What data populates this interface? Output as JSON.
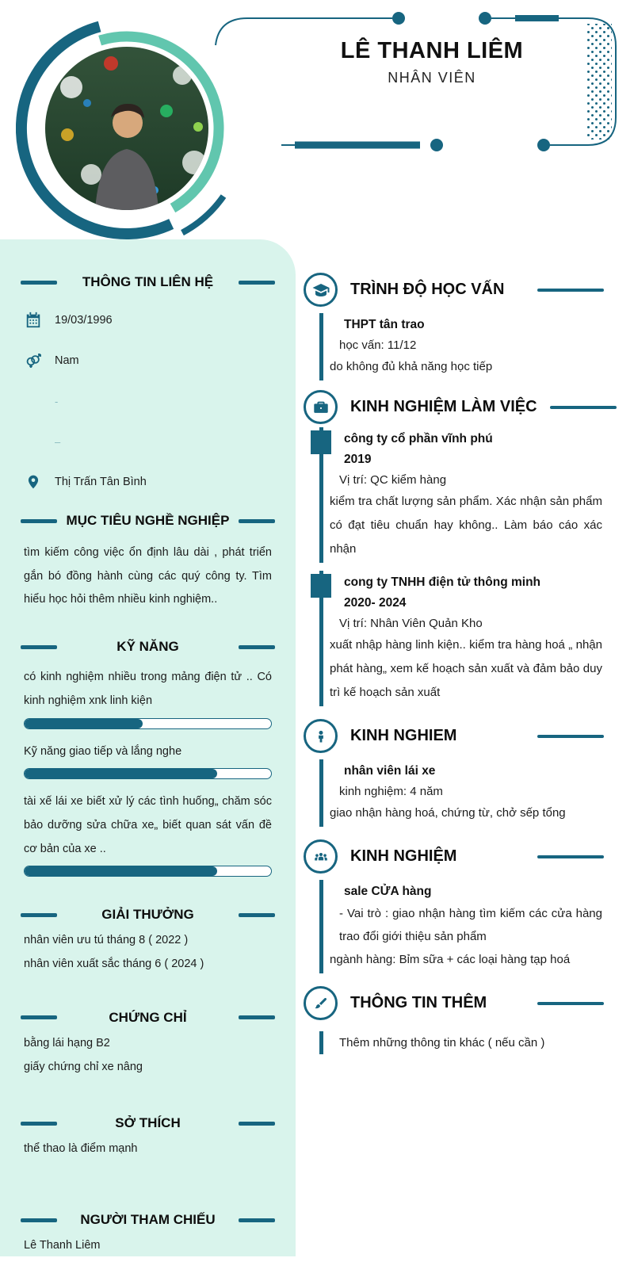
{
  "colors": {
    "accent": "#176580",
    "mint": "#d9f4ec",
    "arc_light": "#61c6ae"
  },
  "header": {
    "name": "LÊ THANH LIÊM",
    "title": "NHÂN VIÊN"
  },
  "left": {
    "contact": {
      "heading": "THÔNG TIN LIÊN HỆ",
      "items": [
        {
          "icon": "calendar-icon",
          "text": "19/03/1996"
        },
        {
          "icon": "gender-icon",
          "text": "Nam"
        },
        {
          "icon": "none",
          "text": "-"
        },
        {
          "icon": "none",
          "text": "–"
        },
        {
          "icon": "location-icon",
          "text": "Thị Trấn Tân Bình"
        }
      ]
    },
    "objective": {
      "heading": "MỤC TIÊU NGHỀ NGHIỆP",
      "text": "tìm kiếm công việc ổn định lâu dài , phát triển gắn bó đồng hành cùng các quý công ty. Tìm hiểu học hỏi thêm nhiều kinh nghiệm.."
    },
    "skills": {
      "heading": "KỸ NĂNG",
      "items": [
        {
          "text": "có kinh nghiệm nhiều trong mảng điện tử .. Có kinh nghiệm xnk linh kiện",
          "percent": 48
        },
        {
          "text": "Kỹ năng giao tiếp và lắng nghe",
          "percent": 78
        },
        {
          "text": "tài xế lái xe biết xử lý các tình huống„ chăm sóc bảo dưỡng sửa chữa xe„ biết quan sát vấn đề cơ bản của xe ..",
          "percent": 78
        }
      ]
    },
    "awards": {
      "heading": "GIẢI THƯỞNG",
      "items": [
        "nhân viên ưu tú tháng 8 ( 2022 )",
        "nhân viên xuất sắc tháng 6 ( 2024 )"
      ]
    },
    "certificates": {
      "heading": "CHỨNG CHỈ",
      "items": [
        "bằng lái hạng B2",
        "giấy chứng chỉ xe nâng"
      ]
    },
    "hobbies": {
      "heading": "SỞ THÍCH",
      "items": [
        "thể thao là điểm mạnh"
      ]
    },
    "references": {
      "heading": "NGƯỜI THAM CHIẾU",
      "items": [
        "Lê Thanh Liêm"
      ]
    }
  },
  "right": {
    "education": {
      "heading": "TRÌNH ĐỘ HỌC VẤN",
      "icon": "graduation-cap-icon",
      "entry": {
        "title": "THPT tân trao",
        "subtitle": "học vấn: 11/12",
        "body": "do không đủ khả năng học tiếp"
      }
    },
    "work": {
      "heading": "KINH NGHIỆM LÀM VIỆC",
      "icon": "briefcase-icon",
      "entries": [
        {
          "title": "công ty cổ phần vĩnh phú",
          "period": "2019",
          "subtitle": "Vị trí: QC kiểm hàng",
          "body": "kiểm tra chất lượng sản phẩm. Xác nhận sản phẩm có đạt tiêu chuẩn hay không.. Làm báo cáo xác nhận"
        },
        {
          "title": "cong ty TNHH điện tử thông minh",
          "period": "2020- 2024",
          "subtitle": "Vị trí: Nhân Viên Quản Kho",
          "body": "xuất nhập hàng linh kiện.. kiểm tra hàng hoá „ nhận phát hàng„ xem kế hoạch sản xuất và đảm bảo duy trì kế hoạch sản xuất"
        }
      ]
    },
    "experience_driver": {
      "heading": "KINH NGHIEM",
      "icon": "person-icon",
      "entry": {
        "title": "nhân viên lái xe",
        "subtitle": "kinh nghiệm: 4 năm",
        "body": "giao nhận hàng hoá, chứng từ, chở sếp tổng"
      }
    },
    "experience_sale": {
      "heading": "KINH NGHIỆM",
      "icon": "people-icon",
      "entry": {
        "title": "sale CỬA hàng",
        "subtitle": "- Vai trò : giao nhận hàng tìm kiếm các cửa hàng trao đổi giới thiệu sản phẩm",
        "body": "ngành hàng: Bỉm sữa + các loại hàng tạp hoá"
      }
    },
    "additional": {
      "heading": "THÔNG TIN THÊM",
      "icon": "brush-icon",
      "entry": {
        "subtitle": "Thêm những thông tin khác ( nếu cần )"
      }
    }
  }
}
